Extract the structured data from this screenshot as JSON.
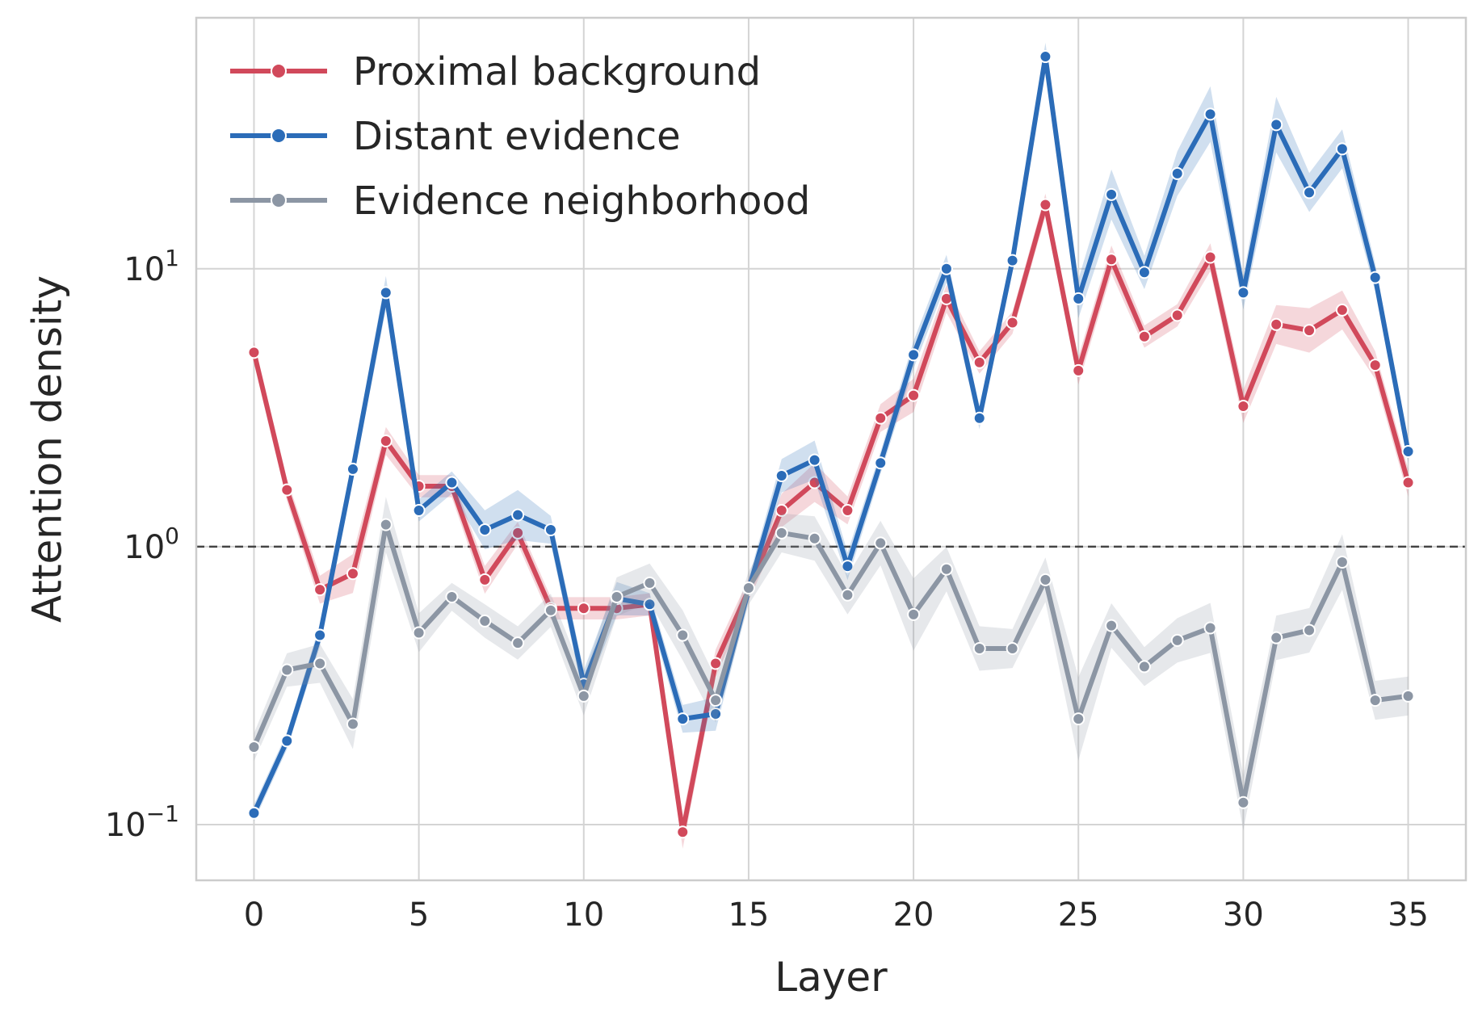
{
  "chart_data": {
    "type": "line",
    "xlabel": "Layer",
    "ylabel": "Attention density",
    "yscale": "log",
    "xlim": [
      -1.75,
      36.75
    ],
    "ylim": [
      0.063,
      80
    ],
    "xticks": [
      0,
      5,
      10,
      15,
      20,
      25,
      30,
      35
    ],
    "yticks": [
      {
        "value": 0.1,
        "base": "10",
        "exp": "−1"
      },
      {
        "value": 1,
        "base": "10",
        "exp": "0"
      },
      {
        "value": 10,
        "base": "10",
        "exp": "1"
      }
    ],
    "grid": true,
    "legend_position": "top-left",
    "reference_line": {
      "y": 1,
      "style": "dashed",
      "color": "#444444"
    },
    "x": [
      0,
      1,
      2,
      3,
      4,
      5,
      6,
      7,
      8,
      9,
      10,
      11,
      12,
      13,
      14,
      15,
      16,
      17,
      18,
      19,
      20,
      21,
      22,
      23,
      24,
      25,
      26,
      27,
      28,
      29,
      30,
      31,
      32,
      33,
      34,
      35
    ],
    "series": [
      {
        "name": "Proximal background",
        "color": "#d1495b",
        "values": [
          5.0,
          1.6,
          0.7,
          0.8,
          2.4,
          1.65,
          1.65,
          0.76,
          1.12,
          0.6,
          0.6,
          0.6,
          0.62,
          0.094,
          0.38,
          0.7,
          1.35,
          1.7,
          1.35,
          2.9,
          3.5,
          7.8,
          4.6,
          6.4,
          17,
          4.3,
          10.8,
          5.7,
          6.8,
          11,
          3.2,
          6.3,
          6.0,
          7.1,
          4.5,
          1.7
        ],
        "band": [
          0.04,
          0.04,
          0.05,
          0.07,
          0.05,
          0.04,
          0.04,
          0.05,
          0.04,
          0.04,
          0.04,
          0.04,
          0.04,
          0.06,
          0.05,
          0.04,
          0.06,
          0.07,
          0.05,
          0.05,
          0.06,
          0.05,
          0.04,
          0.04,
          0.04,
          0.05,
          0.05,
          0.04,
          0.04,
          0.05,
          0.06,
          0.07,
          0.08,
          0.07,
          0.05,
          0.05
        ]
      },
      {
        "name": "Distant evidence",
        "color": "#2b6cb8",
        "values": [
          0.11,
          0.2,
          0.48,
          1.9,
          8.2,
          1.35,
          1.7,
          1.15,
          1.3,
          1.15,
          0.32,
          0.65,
          0.62,
          0.24,
          0.25,
          0.7,
          1.8,
          2.05,
          0.85,
          2.0,
          4.9,
          10.0,
          2.9,
          10.7,
          58,
          7.8,
          18.5,
          9.7,
          22,
          36,
          8.2,
          33,
          18.8,
          27,
          9.3,
          2.2
        ],
        "band": [
          0.03,
          0.03,
          0.04,
          0.04,
          0.06,
          0.04,
          0.04,
          0.07,
          0.09,
          0.05,
          0.05,
          0.06,
          0.04,
          0.05,
          0.06,
          0.04,
          0.06,
          0.07,
          0.05,
          0.04,
          0.05,
          0.05,
          0.04,
          0.04,
          0.05,
          0.07,
          0.09,
          0.06,
          0.08,
          0.1,
          0.06,
          0.1,
          0.07,
          0.07,
          0.05,
          0.04
        ]
      },
      {
        "name": "Evidence neighborhood",
        "color": "#8c96a4",
        "values": [
          0.19,
          0.36,
          0.38,
          0.23,
          1.2,
          0.49,
          0.66,
          0.54,
          0.45,
          0.59,
          0.29,
          0.66,
          0.74,
          0.48,
          0.28,
          0.71,
          1.12,
          1.07,
          0.67,
          1.03,
          0.57,
          0.83,
          0.43,
          0.43,
          0.76,
          0.24,
          0.52,
          0.37,
          0.46,
          0.51,
          0.12,
          0.47,
          0.5,
          0.88,
          0.28,
          0.29
        ],
        "band": [
          0.05,
          0.06,
          0.07,
          0.09,
          0.1,
          0.07,
          0.05,
          0.06,
          0.06,
          0.06,
          0.07,
          0.07,
          0.07,
          0.09,
          0.08,
          0.06,
          0.07,
          0.08,
          0.07,
          0.08,
          0.13,
          0.08,
          0.08,
          0.07,
          0.08,
          0.15,
          0.08,
          0.07,
          0.08,
          0.09,
          0.1,
          0.08,
          0.08,
          0.1,
          0.07,
          0.07
        ]
      }
    ]
  }
}
